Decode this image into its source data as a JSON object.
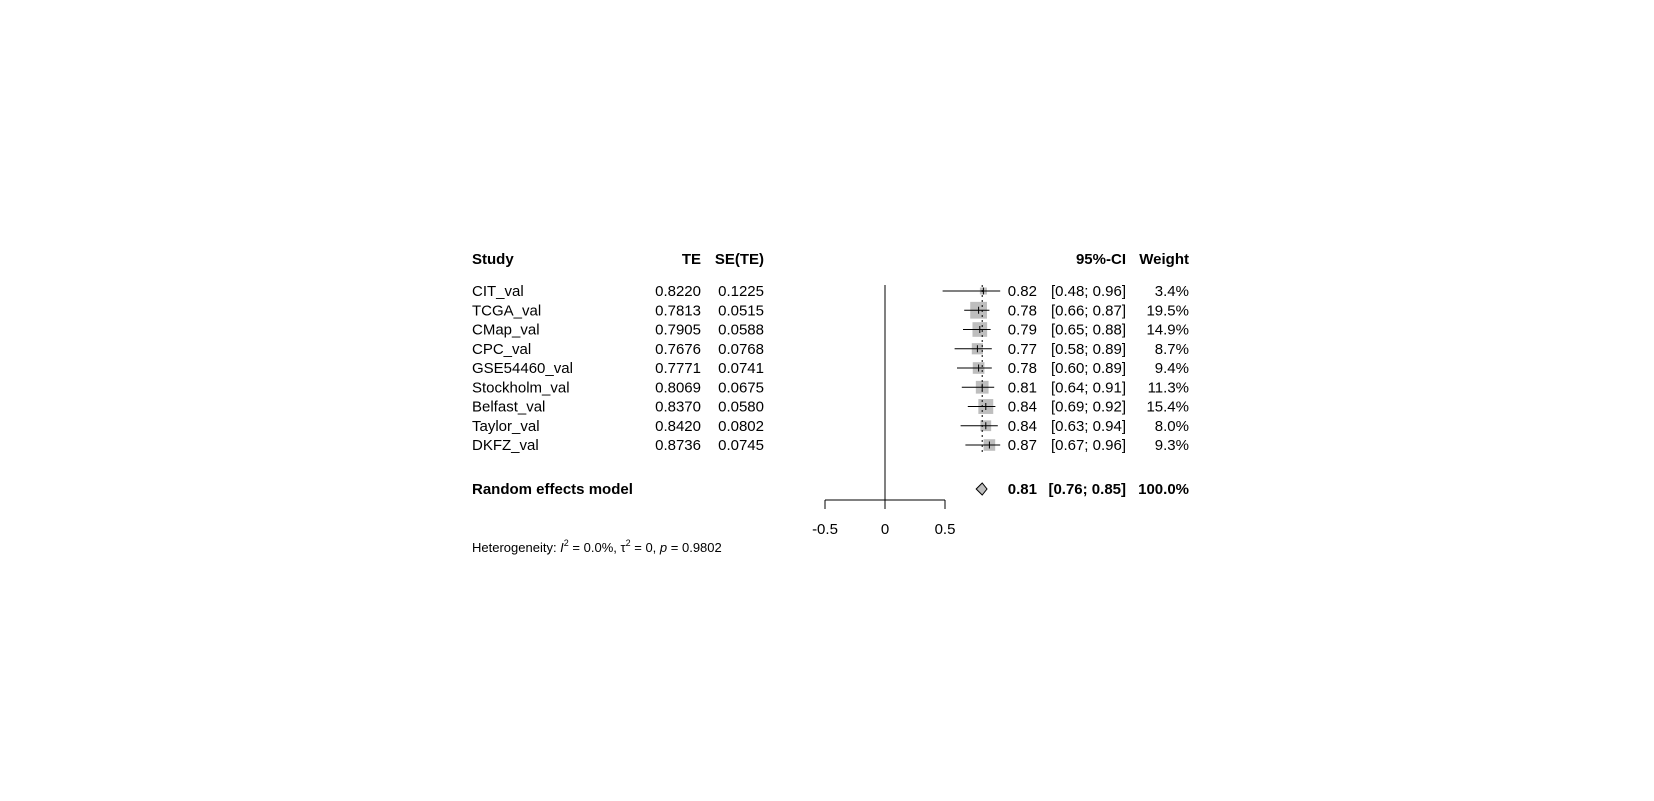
{
  "chart_data": {
    "type": "forest",
    "title": "",
    "headers": {
      "study": "Study",
      "te": "TE",
      "sete": "SE(TE)",
      "ci": "95%-CI",
      "weight": "Weight"
    },
    "studies": [
      {
        "name": "CIT_val",
        "te": "0.8220",
        "sete": "0.1225",
        "est": 0.82,
        "lower": 0.48,
        "upper": 0.96,
        "weight_pct": 3.4,
        "est_label": "0.82",
        "ci_label": "[0.48; 0.96]",
        "weight_label": "3.4%"
      },
      {
        "name": "TCGA_val",
        "te": "0.7813",
        "sete": "0.0515",
        "est": 0.78,
        "lower": 0.66,
        "upper": 0.87,
        "weight_pct": 19.5,
        "est_label": "0.78",
        "ci_label": "[0.66; 0.87]",
        "weight_label": "19.5%"
      },
      {
        "name": "CMap_val",
        "te": "0.7905",
        "sete": "0.0588",
        "est": 0.79,
        "lower": 0.65,
        "upper": 0.88,
        "weight_pct": 14.9,
        "est_label": "0.79",
        "ci_label": "[0.65; 0.88]",
        "weight_label": "14.9%"
      },
      {
        "name": "CPC_val",
        "te": "0.7676",
        "sete": "0.0768",
        "est": 0.77,
        "lower": 0.58,
        "upper": 0.89,
        "weight_pct": 8.7,
        "est_label": "0.77",
        "ci_label": "[0.58; 0.89]",
        "weight_label": "8.7%"
      },
      {
        "name": "GSE54460_val",
        "te": "0.7771",
        "sete": "0.0741",
        "est": 0.78,
        "lower": 0.6,
        "upper": 0.89,
        "weight_pct": 9.4,
        "est_label": "0.78",
        "ci_label": "[0.60; 0.89]",
        "weight_label": "9.4%"
      },
      {
        "name": "Stockholm_val",
        "te": "0.8069",
        "sete": "0.0675",
        "est": 0.81,
        "lower": 0.64,
        "upper": 0.91,
        "weight_pct": 11.3,
        "est_label": "0.81",
        "ci_label": "[0.64; 0.91]",
        "weight_label": "11.3%"
      },
      {
        "name": "Belfast_val",
        "te": "0.8370",
        "sete": "0.0580",
        "est": 0.84,
        "lower": 0.69,
        "upper": 0.92,
        "weight_pct": 15.4,
        "est_label": "0.84",
        "ci_label": "[0.69; 0.92]",
        "weight_label": "15.4%"
      },
      {
        "name": "Taylor_val",
        "te": "0.8420",
        "sete": "0.0802",
        "est": 0.84,
        "lower": 0.63,
        "upper": 0.94,
        "weight_pct": 8.0,
        "est_label": "0.84",
        "ci_label": "[0.63; 0.94]",
        "weight_label": "8.0%"
      },
      {
        "name": "DKFZ_val",
        "te": "0.8736",
        "sete": "0.0745",
        "est": 0.87,
        "lower": 0.67,
        "upper": 0.96,
        "weight_pct": 9.3,
        "est_label": "0.87",
        "ci_label": "[0.67; 0.96]",
        "weight_label": "9.3%"
      }
    ],
    "summary": {
      "name": "Random effects model",
      "est": 0.81,
      "lower": 0.76,
      "upper": 0.85,
      "est_label": "0.81",
      "ci_label": "[0.76; 0.85]",
      "weight_label": "100.0%"
    },
    "xaxis": {
      "range": [
        -0.5,
        0.5
      ],
      "ticks": [
        -0.5,
        0,
        0.5
      ],
      "tick_labels": [
        "-0.5",
        "0",
        "0.5"
      ],
      "reference_line": 0
    },
    "heterogeneity": {
      "prefix": "Heterogeneity: ",
      "i2_symbol": "I",
      "i2_value": " = 0.0%, ",
      "tau_symbol": "τ",
      "tau_value": " = 0, ",
      "p_symbol": "p",
      "p_value": " = 0.9802",
      "superscript": "2"
    },
    "colors": {
      "square": "#bebebe",
      "diamond": "#bebebe",
      "line": "#000000"
    }
  }
}
